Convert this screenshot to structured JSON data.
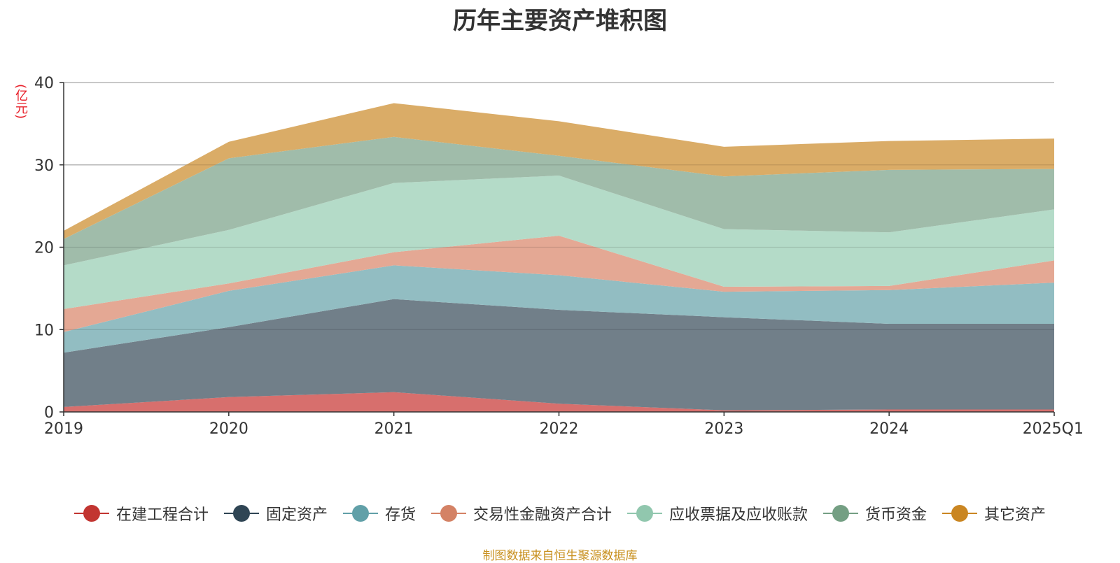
{
  "title": "历年主要资产堆积图",
  "unit_label": "(亿元)",
  "source_note": "制图数据来自恒生聚源数据库",
  "chart_data": {
    "type": "area",
    "stacked": true,
    "title": "历年主要资产堆积图",
    "ylabel": "(亿元)",
    "ylim": [
      0,
      40
    ],
    "yticks": [
      0,
      10,
      20,
      30,
      40
    ],
    "grid": true,
    "legend_position": "bottom",
    "categories": [
      "2019",
      "2020",
      "2021",
      "2022",
      "2023",
      "2024",
      "2025Q1"
    ],
    "series": [
      {
        "name": "在建工程合计",
        "color": "#c23531",
        "fill": "#d66c6a",
        "values": [
          0.6,
          1.8,
          2.4,
          1.0,
          0.2,
          0.3,
          0.3
        ]
      },
      {
        "name": "固定资产",
        "color": "#2f4554",
        "fill": "#6e7c87",
        "values": [
          6.6,
          8.5,
          11.3,
          11.4,
          11.3,
          10.4,
          10.4
        ]
      },
      {
        "name": "存货",
        "color": "#61a0a8",
        "fill": "#90bcc1",
        "values": [
          2.5,
          4.4,
          4.1,
          4.2,
          3.1,
          4.1,
          5.0
        ]
      },
      {
        "name": "交易性金融资产合计",
        "color": "#d48265",
        "fill": "#e3a692",
        "values": [
          2.8,
          0.9,
          1.6,
          4.8,
          0.6,
          0.5,
          2.7
        ]
      },
      {
        "name": "应收票据及应收账款",
        "color": "#91c7ae",
        "fill": "#b2dac7",
        "values": [
          5.3,
          6.5,
          8.4,
          7.3,
          7.0,
          6.5,
          6.2
        ]
      },
      {
        "name": "货币资金",
        "color": "#749f83",
        "fill": "#9ebba8",
        "values": [
          3.2,
          8.7,
          5.6,
          2.4,
          6.4,
          7.6,
          4.9
        ]
      },
      {
        "name": "其它资产",
        "color": "#ca8622",
        "fill": "#d9aa64",
        "values": [
          1.0,
          2.0,
          4.1,
          4.2,
          3.6,
          3.5,
          3.7
        ]
      }
    ]
  }
}
